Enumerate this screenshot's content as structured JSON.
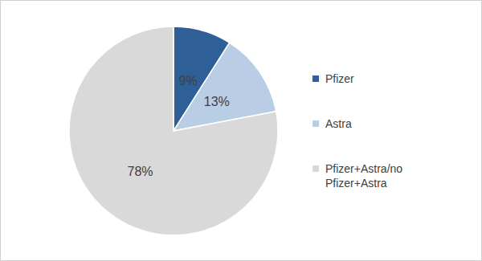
{
  "chart_data": {
    "type": "pie",
    "categories": [
      "Pfizer",
      "Astra",
      "Pfizer+Astra/no Pfizer+Astra"
    ],
    "values": [
      9,
      13,
      78
    ],
    "value_labels": [
      "9%",
      "13%",
      "78%"
    ],
    "colors": [
      "#2f5f97",
      "#b9cde5",
      "#d9d9d9"
    ],
    "data_labels": true,
    "legend": "right"
  }
}
